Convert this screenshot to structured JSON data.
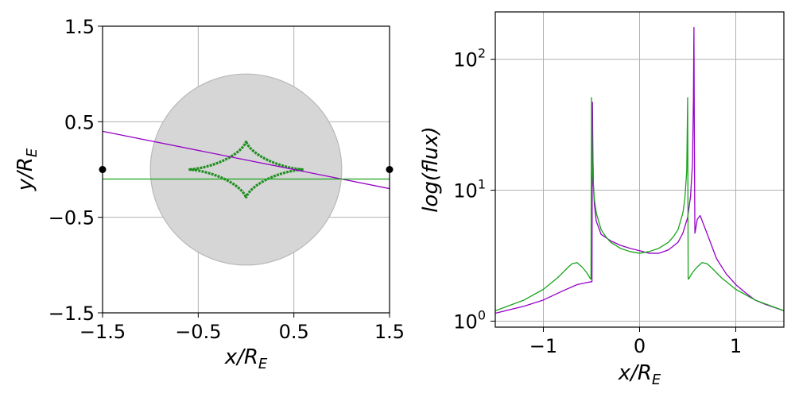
{
  "chart_data": [
    {
      "type": "line",
      "title": "",
      "xlabel": "x/R",
      "xlabel_sub": "E",
      "ylabel": "y/R",
      "ylabel_sub": "E",
      "xlim": [
        -1.5,
        1.5
      ],
      "ylim": [
        -1.5,
        1.5
      ],
      "xticks": [
        -1.5,
        -0.5,
        0.5,
        1.5
      ],
      "xtick_labels": [
        "−1.5",
        "−0.5",
        "0.5",
        "1.5"
      ],
      "yticks": [
        -1.5,
        -0.5,
        0.5,
        1.5
      ],
      "ytick_labels": [
        "−1.5",
        "−0.5",
        "0.5",
        "1.5"
      ],
      "grid": true,
      "einstein_ring": {
        "center": [
          0,
          0
        ],
        "radius": 1.0,
        "color": "#d6d6d6"
      },
      "caustic": {
        "type": "astroid",
        "half_width": 0.6,
        "half_height": 0.3,
        "color": "#1f8f1f"
      },
      "lens_points": [
        [
          -1.5,
          0.0
        ],
        [
          1.5,
          0.0
        ]
      ],
      "tracks": [
        {
          "color": "#9500c8",
          "points": [
            [
              -1.5,
              0.4
            ],
            [
              1.5,
              -0.2
            ]
          ]
        },
        {
          "color": "#1aa31a",
          "points": [
            [
              -1.5,
              -0.1
            ],
            [
              1.5,
              -0.1
            ]
          ]
        }
      ]
    },
    {
      "type": "line",
      "title": "",
      "xlabel": "x/R",
      "xlabel_sub": "E",
      "ylabel": "log(flux)",
      "xlim": [
        -1.5,
        1.5
      ],
      "ylim": [
        0.9,
        230
      ],
      "yscale": "log",
      "xticks": [
        -1,
        0,
        1
      ],
      "xtick_labels": [
        "−1",
        "0",
        "1"
      ],
      "yticks": [
        1,
        10,
        100
      ],
      "ytick_base": "10",
      "ytick_exponents": [
        "0",
        "1",
        "2"
      ],
      "grid": true,
      "series": [
        {
          "color": "#9500c8",
          "x": [
            -1.5,
            -1.2,
            -1.0,
            -0.8,
            -0.65,
            -0.55,
            -0.5,
            -0.495,
            -0.49,
            -0.485,
            -0.48,
            -0.47,
            -0.45,
            -0.4,
            -0.3,
            -0.2,
            -0.1,
            0.0,
            0.1,
            0.2,
            0.3,
            0.4,
            0.45,
            0.5,
            0.53,
            0.55,
            0.56,
            0.565,
            0.57,
            0.575,
            0.58,
            0.6,
            0.63,
            0.66,
            0.7,
            0.8,
            0.9,
            1.0,
            1.1,
            1.2,
            1.3,
            1.5
          ],
          "y": [
            1.15,
            1.3,
            1.45,
            1.7,
            1.9,
            1.97,
            2.0,
            2.0,
            47,
            17,
            11,
            7.8,
            5.8,
            4.6,
            4.1,
            3.8,
            3.6,
            3.45,
            3.3,
            3.3,
            3.5,
            4.0,
            4.7,
            6.2,
            9.0,
            16,
            50,
            175,
            20,
            4.7,
            4.9,
            6.0,
            6.4,
            5.6,
            4.7,
            3.0,
            2.3,
            1.9,
            1.65,
            1.45,
            1.35,
            1.2
          ]
        },
        {
          "color": "#1aa31a",
          "x": [
            -1.5,
            -1.2,
            -1.0,
            -0.85,
            -0.75,
            -0.7,
            -0.65,
            -0.6,
            -0.55,
            -0.51,
            -0.505,
            -0.5,
            -0.49,
            -0.47,
            -0.45,
            -0.4,
            -0.35,
            -0.3,
            -0.2,
            -0.1,
            0.0,
            0.1,
            0.2,
            0.3,
            0.35,
            0.4,
            0.45,
            0.47,
            0.49,
            0.5,
            0.505,
            0.51,
            0.55,
            0.6,
            0.65,
            0.7,
            0.75,
            0.85,
            1.0,
            1.2,
            1.5
          ],
          "y": [
            1.2,
            1.45,
            1.75,
            2.15,
            2.55,
            2.75,
            2.8,
            2.6,
            2.35,
            2.1,
            2.1,
            51,
            14,
            8.5,
            6.7,
            5.0,
            4.4,
            4.0,
            3.6,
            3.4,
            3.3,
            3.4,
            3.6,
            4.0,
            4.4,
            5.0,
            6.7,
            8.5,
            14,
            51,
            2.1,
            2.1,
            2.35,
            2.6,
            2.8,
            2.75,
            2.55,
            2.15,
            1.75,
            1.45,
            1.2
          ]
        }
      ]
    }
  ]
}
